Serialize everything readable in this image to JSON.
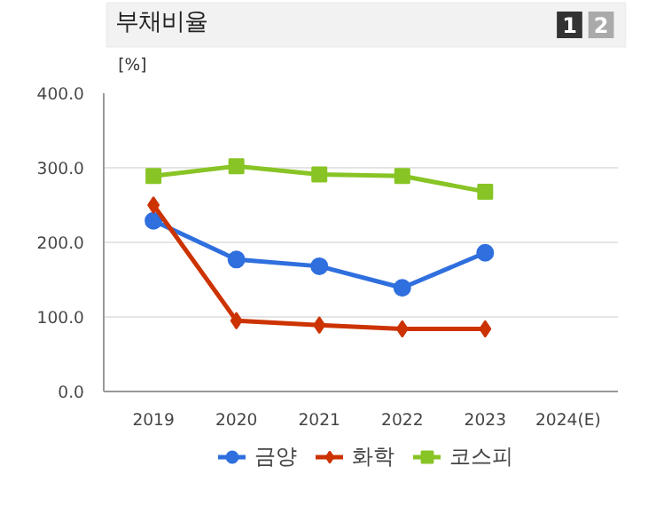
{
  "chart_data": {
    "type": "line",
    "title": "부채비율",
    "ylabel": "[%]",
    "annotations": [
      "1",
      "2"
    ],
    "categories": [
      "2019",
      "2020",
      "2021",
      "2022",
      "2023",
      "2024(E)"
    ],
    "series": [
      {
        "name": "금양",
        "color": "#2f6fde",
        "marker": "circle",
        "values": [
          229,
          177,
          168,
          139,
          186,
          null
        ]
      },
      {
        "name": "화학",
        "color": "#cc3300",
        "marker": "diamond",
        "values": [
          250,
          95,
          89,
          84,
          84,
          null
        ]
      },
      {
        "name": "코스피",
        "color": "#88c425",
        "marker": "square",
        "values": [
          289,
          302,
          291,
          289,
          268,
          null
        ]
      }
    ],
    "ylim": [
      0,
      400
    ],
    "yticks": [
      {
        "value": 0,
        "label": "0.0"
      },
      {
        "value": 100,
        "label": "100.0"
      },
      {
        "value": 200,
        "label": "200.0"
      },
      {
        "value": 300,
        "label": "300.0"
      },
      {
        "value": 400,
        "label": "400.0"
      }
    ],
    "grid": "y",
    "legend": "bottom"
  }
}
